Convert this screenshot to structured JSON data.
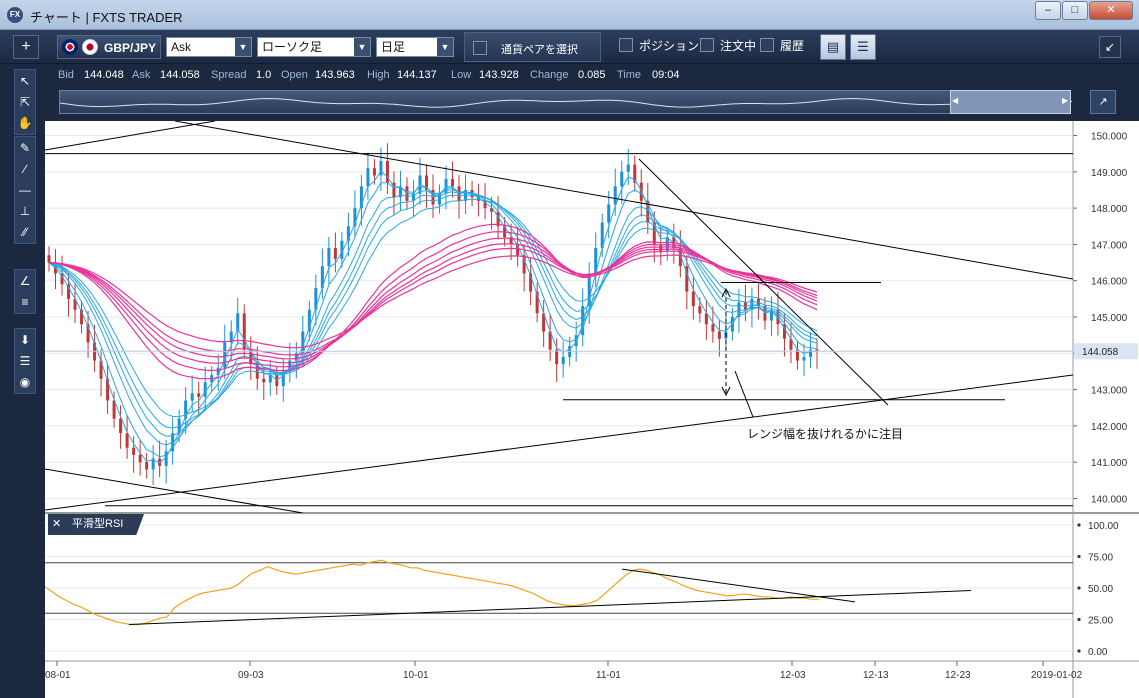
{
  "window": {
    "title": "チャート | FXTS TRADER",
    "app_icon": "FX",
    "buttons": [
      "minimize-icon",
      "maximize-icon",
      "close-icon"
    ]
  },
  "toolbar": {
    "add_label": "+",
    "pair": "GBP/JPY",
    "price_type": "Ask",
    "chart_type": "ローソク足",
    "timeframe": "日足",
    "pair_select_label": "通貨ペアを選択",
    "position_label": "ポジション",
    "order_label": "注文中",
    "history_label": "履歴"
  },
  "quote": {
    "bid_label": "Bid",
    "bid": "144.048",
    "ask_label": "Ask",
    "ask": "144.058",
    "spread_label": "Spread",
    "spread": "1.0",
    "open_label": "Open",
    "open": "143.963",
    "high_label": "High",
    "high": "144.137",
    "low_label": "Low",
    "low": "143.928",
    "change_label": "Change",
    "change": "0.085",
    "time_label": "Time",
    "time": "09:04"
  },
  "indicator": {
    "name": "平滑型RSI",
    "levels": [
      70,
      30
    ]
  },
  "annotation": "レンジ幅を抜けれるかに注目",
  "colors": {
    "candle_up": "#1f8fd8",
    "candle_down": "#c23636",
    "ma_fast": "#27a9e6",
    "ma_slow": "#e8349a",
    "rsi_line": "#f2a51c",
    "price_badge": "#dbe4f2"
  },
  "chart_data": [
    {
      "type": "candlestick",
      "pair": "GBP/JPY",
      "current_price": 144.058,
      "y_ticks": [
        "150.000",
        "149.000",
        "148.000",
        "147.000",
        "146.000",
        "145.000",
        "144.000",
        "143.000",
        "142.000",
        "141.000",
        "140.000"
      ],
      "ylim": [
        139.6,
        150.4
      ],
      "x_ticks": [
        "08-01",
        "09-03",
        "10-01",
        "11-01",
        "12-03",
        "12-13",
        "12-23",
        "2019-01-02"
      ],
      "close_series": [
        146.5,
        146.2,
        145.9,
        145.5,
        145.2,
        144.8,
        144.3,
        143.8,
        143.3,
        142.7,
        142.2,
        141.8,
        141.4,
        141.2,
        141.0,
        140.8,
        141.1,
        140.9,
        141.3,
        141.8,
        142.2,
        142.7,
        142.9,
        142.8,
        143.2,
        143.4,
        143.6,
        144.3,
        144.6,
        145.1,
        144.1,
        143.7,
        143.3,
        143.2,
        143.4,
        143.1,
        143.5,
        143.8,
        144.0,
        144.6,
        145.2,
        145.8,
        146.4,
        146.9,
        146.6,
        147.1,
        147.5,
        148.0,
        148.6,
        149.1,
        148.9,
        149.3,
        148.7,
        148.3,
        148.6,
        148.2,
        148.4,
        148.9,
        148.5,
        148.1,
        148.4,
        148.8,
        148.6,
        148.2,
        148.5,
        148.3,
        148.2,
        148.0,
        147.9,
        147.5,
        147.2,
        147.0,
        146.7,
        146.2,
        145.7,
        145.1,
        144.6,
        144.1,
        143.7,
        143.9,
        144.2,
        144.5,
        145.3,
        146.2,
        146.9,
        147.6,
        148.1,
        148.6,
        149.0,
        149.2,
        148.7,
        148.2,
        147.6,
        147.0,
        146.8,
        147.2,
        146.9,
        146.4,
        145.7,
        145.3,
        145.1,
        144.8,
        144.6,
        144.4,
        144.6,
        145.0,
        145.4,
        145.2,
        145.5,
        145.3,
        144.9,
        145.2,
        144.8,
        144.4,
        144.1,
        143.8,
        143.9,
        144.1,
        144.06
      ],
      "rsi_series": [
        51,
        47,
        43,
        40,
        37,
        35,
        32,
        29,
        27,
        25,
        23,
        22,
        21,
        21,
        22,
        24,
        26,
        27,
        34,
        38,
        41,
        44,
        46,
        47,
        48,
        49,
        50,
        53,
        58,
        62,
        64,
        67,
        65,
        63,
        62,
        61,
        62,
        63,
        64,
        65,
        66,
        67,
        68,
        69,
        68,
        70,
        71,
        72,
        70,
        69,
        68,
        66,
        66,
        64,
        63,
        62,
        61,
        60,
        59,
        58,
        57,
        56,
        55,
        54,
        53,
        52,
        50,
        48,
        46,
        43,
        40,
        38,
        37,
        36,
        36,
        37,
        38,
        40,
        45,
        50,
        55,
        60,
        64,
        65,
        64,
        62,
        60,
        57,
        55,
        52,
        50,
        48,
        47,
        46,
        45,
        44,
        44,
        45,
        45,
        44,
        43,
        43,
        42,
        42,
        43,
        42,
        42,
        41,
        41
      ],
      "rsi_ylim": [
        0,
        100
      ],
      "rsi_ticks": [
        "100.00",
        "75.00",
        "50.00",
        "25.00",
        "0.00"
      ],
      "horizontal_lines": [
        149.5,
        139.8,
        142.7,
        145.95
      ],
      "price_label": "144.058"
    }
  ]
}
